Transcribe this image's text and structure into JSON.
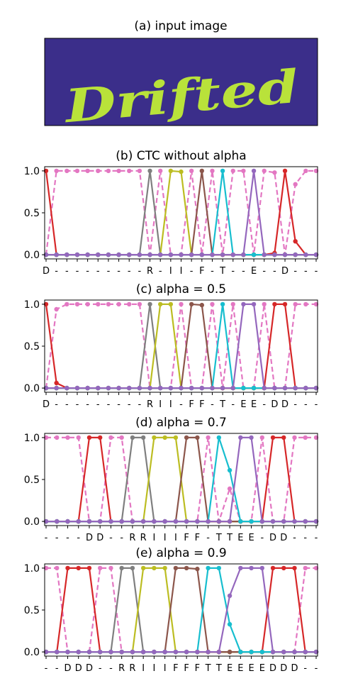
{
  "input_panel": {
    "title": "(a) input image",
    "word": "Drifted",
    "background_color": "#3b2e8a",
    "text_color": "#b9e23a"
  },
  "colors": {
    "D": "#d62728",
    "R": "#7f7f7f",
    "I": "#bcbd22",
    "F": "#8c564b",
    "T": "#17becf",
    "E": "#9467bd",
    "blank": "#e377c2",
    "baseline": "#8c564b"
  },
  "chart_data": [
    {
      "type": "line",
      "title": "(b) CTC without alpha",
      "ylim": [
        0,
        1
      ],
      "yticks": [
        "0.0",
        "0.5",
        "1.0"
      ],
      "xtick_labels": [
        "D",
        "-",
        "-",
        "-",
        "-",
        "-",
        "-",
        "-",
        "-",
        "-",
        "R",
        "-",
        "I",
        "I",
        "-",
        "F",
        "-",
        "T",
        "-",
        "-",
        "E",
        "-",
        "-",
        "D",
        "-",
        "-",
        "-"
      ],
      "series": [
        {
          "key": "D",
          "values": [
            1,
            0,
            0,
            0,
            0,
            0,
            0,
            0,
            0,
            0,
            0,
            0,
            0,
            0,
            0,
            0,
            0,
            0,
            0,
            0,
            0,
            0,
            0.02,
            1,
            0.16,
            0,
            0
          ]
        },
        {
          "key": "R",
          "values": [
            0,
            0,
            0,
            0,
            0,
            0,
            0,
            0,
            0,
            0,
            1,
            0,
            0,
            0,
            0,
            0,
            0,
            0,
            0,
            0,
            0,
            0,
            0,
            0,
            0,
            0,
            0
          ]
        },
        {
          "key": "I",
          "values": [
            0,
            0,
            0,
            0,
            0,
            0,
            0,
            0,
            0,
            0,
            0,
            0,
            1,
            0.99,
            0,
            0,
            0,
            0,
            0,
            0,
            0,
            0,
            0,
            0,
            0,
            0,
            0
          ]
        },
        {
          "key": "F",
          "values": [
            0,
            0,
            0,
            0,
            0,
            0,
            0,
            0,
            0,
            0,
            0,
            0,
            0,
            0,
            0,
            1,
            0,
            0,
            0,
            0,
            0,
            0,
            0,
            0,
            0,
            0,
            0
          ]
        },
        {
          "key": "T",
          "values": [
            0,
            0,
            0,
            0,
            0,
            0,
            0,
            0,
            0,
            0,
            0,
            0,
            0,
            0,
            0,
            0,
            0,
            1,
            0,
            0,
            0,
            0,
            0,
            0,
            0,
            0,
            0
          ]
        },
        {
          "key": "E",
          "values": [
            0,
            0,
            0,
            0,
            0,
            0,
            0,
            0,
            0,
            0,
            0,
            0,
            0,
            0,
            0,
            0,
            0,
            0,
            0,
            0,
            1,
            0,
            0,
            0,
            0,
            0,
            0
          ]
        },
        {
          "key": "blank",
          "dashed": true,
          "values": [
            0,
            1,
            1,
            1,
            1,
            1,
            1,
            1,
            1,
            1,
            0,
            1,
            0,
            0,
            1,
            0,
            1,
            0,
            1,
            1,
            0,
            1,
            0.98,
            0,
            0.84,
            1,
            1
          ]
        }
      ]
    },
    {
      "type": "line",
      "title": "(c) alpha = 0.5",
      "ylim": [
        0,
        1
      ],
      "yticks": [
        "0.0",
        "0.5",
        "1.0"
      ],
      "xtick_labels": [
        "D",
        "-",
        "-",
        "-",
        "-",
        "-",
        "-",
        "-",
        "-",
        "-",
        "R",
        "I",
        "I",
        "-",
        "F",
        "F",
        "-",
        "T",
        "-",
        "E",
        "E",
        "-",
        "D",
        "D",
        "-",
        "-",
        "-"
      ],
      "series": [
        {
          "key": "D",
          "values": [
            1,
            0.06,
            0,
            0,
            0,
            0,
            0,
            0,
            0,
            0,
            0,
            0,
            0,
            0,
            0,
            0,
            0,
            0,
            0,
            0,
            0,
            0,
            1,
            1,
            0,
            0,
            0
          ]
        },
        {
          "key": "R",
          "values": [
            0,
            0,
            0,
            0,
            0,
            0,
            0,
            0,
            0,
            0,
            1,
            0,
            0,
            0,
            0,
            0,
            0,
            0,
            0,
            0,
            0,
            0,
            0,
            0,
            0,
            0,
            0
          ]
        },
        {
          "key": "I",
          "values": [
            0,
            0,
            0,
            0,
            0,
            0,
            0,
            0,
            0,
            0,
            0,
            1,
            1,
            0,
            0,
            0,
            0,
            0,
            0,
            0,
            0,
            0,
            0,
            0,
            0,
            0,
            0
          ]
        },
        {
          "key": "F",
          "values": [
            0,
            0,
            0,
            0,
            0,
            0,
            0,
            0,
            0,
            0,
            0,
            0,
            0,
            0,
            1,
            0.99,
            0,
            0,
            0,
            0,
            0,
            0,
            0,
            0,
            0,
            0,
            0
          ]
        },
        {
          "key": "T",
          "values": [
            0,
            0,
            0,
            0,
            0,
            0,
            0,
            0,
            0,
            0,
            0,
            0,
            0,
            0,
            0,
            0,
            0,
            1,
            0,
            0,
            0,
            0,
            0,
            0,
            0,
            0,
            0
          ]
        },
        {
          "key": "E",
          "values": [
            0,
            0,
            0,
            0,
            0,
            0,
            0,
            0,
            0,
            0,
            0,
            0,
            0,
            0,
            0,
            0,
            0,
            0,
            0,
            1,
            1,
            0,
            0,
            0,
            0,
            0,
            0
          ]
        },
        {
          "key": "blank",
          "dashed": true,
          "values": [
            0,
            0.94,
            1,
            1,
            1,
            1,
            1,
            1,
            1,
            1,
            0,
            0,
            0,
            1,
            0,
            0,
            1,
            0,
            1,
            0,
            0,
            1,
            0,
            0,
            1,
            1,
            1
          ]
        }
      ]
    },
    {
      "type": "line",
      "title": "(d) alpha = 0.7",
      "ylim": [
        0,
        1
      ],
      "yticks": [
        "0.0",
        "0.5",
        "1.0"
      ],
      "xtick_labels": [
        "-",
        "-",
        "-",
        "-",
        "D",
        "D",
        "-",
        "-",
        "R",
        "R",
        "I",
        "I",
        "I",
        "F",
        "F",
        "-",
        "T",
        "T",
        "E",
        "E",
        "-",
        "D",
        "D",
        "-",
        "-",
        "-"
      ],
      "series": [
        {
          "key": "D",
          "values": [
            0,
            0,
            0,
            0,
            1,
            1,
            0,
            0,
            0,
            0,
            0,
            0,
            0,
            0,
            0,
            0,
            0,
            0,
            0,
            0,
            0,
            1,
            1,
            0,
            0,
            0
          ]
        },
        {
          "key": "R",
          "values": [
            0,
            0,
            0,
            0,
            0,
            0,
            0,
            0,
            1,
            1,
            0,
            0,
            0,
            0,
            0,
            0,
            0,
            0,
            0,
            0,
            0,
            0,
            0,
            0,
            0,
            0
          ]
        },
        {
          "key": "I",
          "values": [
            0,
            0,
            0,
            0,
            0,
            0,
            0,
            0,
            0,
            0,
            1,
            1,
            1,
            0,
            0,
            0,
            0,
            0,
            0,
            0,
            0,
            0,
            0,
            0,
            0,
            0
          ]
        },
        {
          "key": "F",
          "values": [
            0,
            0,
            0,
            0,
            0,
            0,
            0,
            0,
            0,
            0,
            0,
            0,
            0,
            1,
            1,
            0,
            0,
            0,
            0,
            0,
            0,
            0,
            0,
            0,
            0,
            0
          ]
        },
        {
          "key": "T",
          "values": [
            0,
            0,
            0,
            0,
            0,
            0,
            0,
            0,
            0,
            0,
            0,
            0,
            0,
            0,
            0,
            0,
            1,
            0.61,
            0,
            0,
            0,
            0,
            0,
            0,
            0,
            0
          ]
        },
        {
          "key": "E",
          "values": [
            0,
            0,
            0,
            0,
            0,
            0,
            0,
            0,
            0,
            0,
            0,
            0,
            0,
            0,
            0,
            0,
            0,
            0,
            1,
            1,
            0,
            0,
            0,
            0,
            0,
            0
          ]
        },
        {
          "key": "blank",
          "dashed": true,
          "values": [
            1,
            1,
            1,
            1,
            0,
            0,
            1,
            1,
            0,
            0,
            0,
            0,
            0,
            0,
            0,
            1,
            0,
            0.39,
            0,
            0,
            1,
            0,
            0,
            1,
            1,
            1
          ]
        }
      ]
    },
    {
      "type": "line",
      "title": "(e) alpha = 0.9",
      "ylim": [
        0,
        1
      ],
      "yticks": [
        "0.0",
        "0.5",
        "1.0"
      ],
      "xtick_labels": [
        "-",
        "-",
        "D",
        "D",
        "D",
        "-",
        "-",
        "R",
        "R",
        "I",
        "I",
        "I",
        "F",
        "F",
        "F",
        "T",
        "T",
        "E",
        "E",
        "E",
        "E",
        "D",
        "D",
        "D",
        "-",
        "-"
      ],
      "series": [
        {
          "key": "D",
          "values": [
            0,
            0,
            1,
            1,
            1,
            0,
            0,
            0,
            0,
            0,
            0,
            0,
            0,
            0,
            0,
            0,
            0,
            0,
            0,
            0,
            0,
            1,
            1,
            1,
            0,
            0
          ]
        },
        {
          "key": "R",
          "values": [
            0,
            0,
            0,
            0,
            0,
            0,
            0,
            1,
            1,
            0,
            0,
            0,
            0,
            0,
            0,
            0,
            0,
            0,
            0,
            0,
            0,
            0,
            0,
            0,
            0,
            0
          ]
        },
        {
          "key": "I",
          "values": [
            0,
            0,
            0,
            0,
            0,
            0,
            0,
            0,
            0,
            1,
            1,
            1,
            0,
            0,
            0,
            0,
            0,
            0,
            0,
            0,
            0,
            0,
            0,
            0,
            0,
            0
          ]
        },
        {
          "key": "F",
          "values": [
            0,
            0,
            0,
            0,
            0,
            0,
            0,
            0,
            0,
            0,
            0,
            0,
            1,
            1,
            0.99,
            0,
            0,
            0,
            0,
            0,
            0,
            0,
            0,
            0,
            0,
            0
          ]
        },
        {
          "key": "T",
          "values": [
            0,
            0,
            0,
            0,
            0,
            0,
            0,
            0,
            0,
            0,
            0,
            0,
            0,
            0,
            0,
            1,
            1,
            0.33,
            0,
            0,
            0,
            0,
            0,
            0,
            0,
            0
          ]
        },
        {
          "key": "E",
          "values": [
            0,
            0,
            0,
            0,
            0,
            0,
            0,
            0,
            0,
            0,
            0,
            0,
            0,
            0,
            0,
            0,
            0,
            0.67,
            1,
            1,
            1,
            0,
            0,
            0,
            0,
            0
          ]
        },
        {
          "key": "blank",
          "dashed": true,
          "values": [
            1,
            1,
            0,
            0,
            0,
            1,
            1,
            0,
            0,
            0,
            0,
            0,
            0,
            0,
            0,
            0,
            0,
            0,
            0,
            0,
            0,
            0,
            0,
            0,
            1,
            1
          ]
        }
      ]
    }
  ]
}
